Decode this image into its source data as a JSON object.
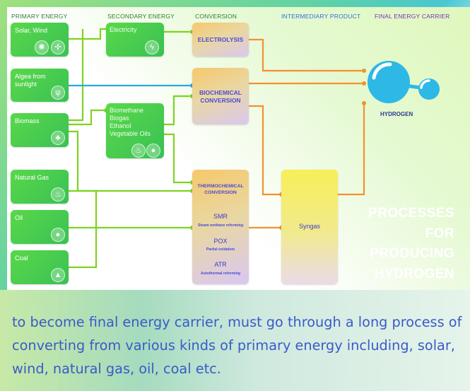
{
  "headers": {
    "primary": "PRIMARY ENERGY",
    "secondary": "SECONDARY ENERGY",
    "conversion": "CONVERSION",
    "intermediary": "INTERMEDIARY PRODUCT",
    "final": "FINAL ENERGY CARRIER"
  },
  "primary": {
    "solar": "Solar, Wind",
    "algea_l1": "Algea from",
    "algea_l2": "sunlight",
    "biomass": "Biomass",
    "natgas": "Natural Gas",
    "oil": "Oil",
    "coal": "Coal"
  },
  "secondary": {
    "electricity": "Electricity",
    "bio_l1": "Biomethane",
    "bio_l2": "Biogas",
    "bio_l3": "Ethanol",
    "bio_l4": "Vegetable Oils"
  },
  "conversion": {
    "electrolysis": "ELECTROLYSIS",
    "biochem_l1": "BIOCHEMICAL",
    "biochem_l2": "CONVERSION",
    "thermo_l1": "THERMOCHEMICAL",
    "thermo_l2": "CONVERSION",
    "smr": "SMR",
    "smr_sub": "Steam methane reforming",
    "pox": "POX",
    "pox_sub": "Partial oxidation",
    "atr": "ATR",
    "atr_sub": "Autothermal reforming"
  },
  "intermediary": {
    "syngas": "Syngas"
  },
  "final": {
    "hydrogen": "HYDROGEN"
  },
  "title": {
    "l1": "PROCESSES",
    "l2": "FOR",
    "l3": "PRODUCING",
    "l4": "HYDROGEN"
  },
  "body": {
    "l1": "to become final energy carrier, must go through a long process of",
    "l2": "converting from various kinds of primary energy including, solar,",
    "l3": "wind, natural gas, oil, coal etc."
  },
  "icons": {
    "solar": "sun-icon",
    "wind": "wind-icon",
    "algea": "plant-icon",
    "biomass": "leaf-icon",
    "natgas": "flame-icon",
    "oil": "drop-icon",
    "coal": "coal-icon",
    "electricity": "charging-icon",
    "bio_fire": "flame-icon",
    "bio_drop": "drop-icon"
  },
  "colors": {
    "green_line": "#7ed321",
    "blue_line": "#29a9e0",
    "orange_line": "#f5902e",
    "hydrogen": "#2eb8e6"
  }
}
